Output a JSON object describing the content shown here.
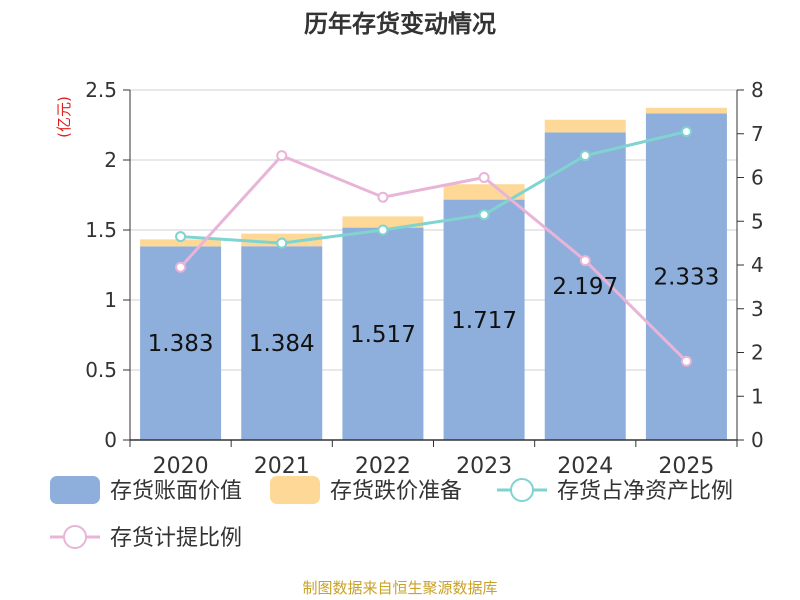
{
  "page": {
    "title": "历年存货变动情况",
    "source": "制图数据来自恒生聚源数据库",
    "unit_label": "(亿元)"
  },
  "chart_data": {
    "type": "bar",
    "title": "历年存货变动情况",
    "categories": [
      "2020",
      "2021",
      "2022",
      "2023",
      "2024",
      "2025"
    ],
    "y_left": {
      "ticks": [
        "0",
        "0.5",
        "1",
        "1.5",
        "2",
        "2.5"
      ],
      "ylim": [
        0,
        2.5
      ],
      "unit": "(亿元)"
    },
    "y_right": {
      "ticks": [
        "0",
        "1",
        "2",
        "3",
        "4",
        "5",
        "6",
        "7",
        "8"
      ],
      "ylim": [
        0,
        8
      ]
    },
    "series": [
      {
        "name": "存货账面价值",
        "type": "bar",
        "axis": "left",
        "stack": "inv",
        "color": "#8eaedb",
        "values": [
          1.383,
          1.384,
          1.517,
          1.717,
          2.197,
          2.333
        ],
        "labels": [
          "1.383",
          "1.384",
          "1.517",
          "1.717",
          "2.197",
          "2.333"
        ]
      },
      {
        "name": "存货跌价准备",
        "type": "bar",
        "axis": "left",
        "stack": "inv",
        "color": "#fdd897",
        "values": [
          0.05,
          0.09,
          0.08,
          0.11,
          0.09,
          0.04
        ]
      },
      {
        "name": "存货占净资产比例",
        "type": "line",
        "axis": "right",
        "color": "#7fd3d0",
        "values": [
          4.65,
          4.5,
          4.8,
          5.15,
          6.5,
          7.05
        ]
      },
      {
        "name": "存货计提比例",
        "type": "line",
        "axis": "right",
        "color": "#e8b4d8",
        "values": [
          3.95,
          6.5,
          5.55,
          6.0,
          4.1,
          1.8
        ]
      }
    ],
    "legend_position": "bottom",
    "grid": true
  }
}
